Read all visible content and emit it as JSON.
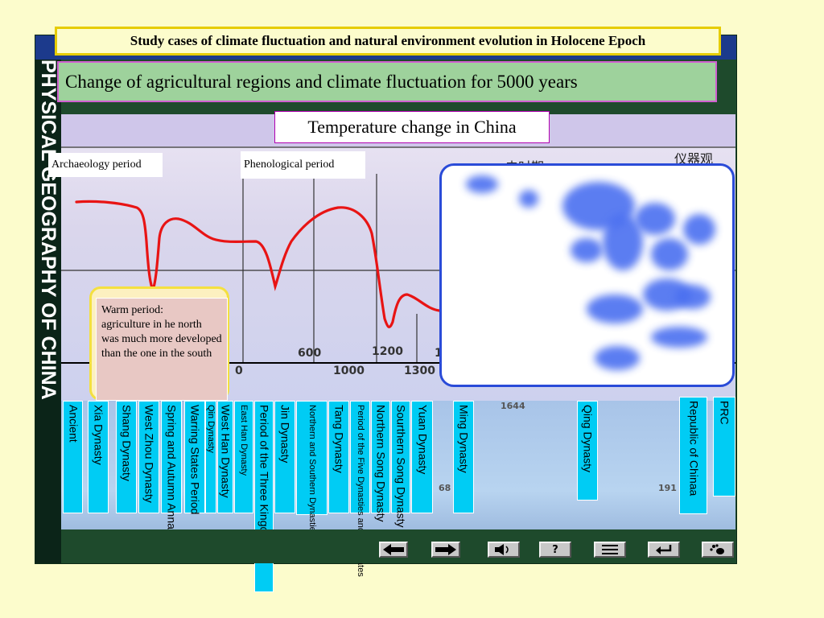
{
  "header_title": "Study cases of climate fluctuation and natural environment evolution in Holocene Epoch",
  "side_title": "PHYSICAL GEOGRAPHY OF CHINA",
  "subtitle": "Change of agricultural regions and climate fluctuation for 5000 years",
  "chart": {
    "title": "Temperature change in China",
    "archaeology_label": "Archaeology period",
    "phenological_label": "Phenological period",
    "cjk_partial_label": "史时期",
    "cjk_instrument_label": "仪器观",
    "upper_ticks": [
      "600",
      "1200",
      "1"
    ],
    "axis_ticks": [
      "0",
      "1000",
      "1300"
    ],
    "lower_numbers": [
      "1644",
      "68",
      "191"
    ]
  },
  "warm_note": "Warm period:\nagriculture in he north was much more developed\n than the one in the south",
  "dynasties": [
    "Ancient",
    "Xia Dynasty",
    "Shang Dynasty",
    "West Zhou Dynasty",
    "Spring and Autumn Annals",
    "Warring States Period",
    "Qin Dynasty",
    "West Han Dynasty",
    "East Han Dynasty",
    "Period of the Three Kingdoms",
    "Jin Dynasty",
    "Northern and Southern Dynasties",
    "Tang Dynasty",
    "Period of the Five Dynasties and Ten States",
    "Northern Song Dynasty",
    "Sourthern Song Dynasty",
    "Yuan Dynasty",
    "Ming Dynasty",
    "Qing Dynasty",
    "Republic of Chinaa",
    "PRC"
  ],
  "nav": {
    "back_icon": "arrow-left-icon",
    "forward_icon": "arrow-right-icon",
    "sound_icon": "speaker-icon",
    "help_icon": "question-icon",
    "menu_icon": "menu-icon",
    "return_icon": "return-icon",
    "exit_icon": "footprint-icon",
    "help_label": "?"
  },
  "colors": {
    "curve": "#e81414",
    "dynasty_fill": "#00ccf4",
    "header_border": "#e6cc00",
    "subtitle_bg": "#9ed29c"
  }
}
